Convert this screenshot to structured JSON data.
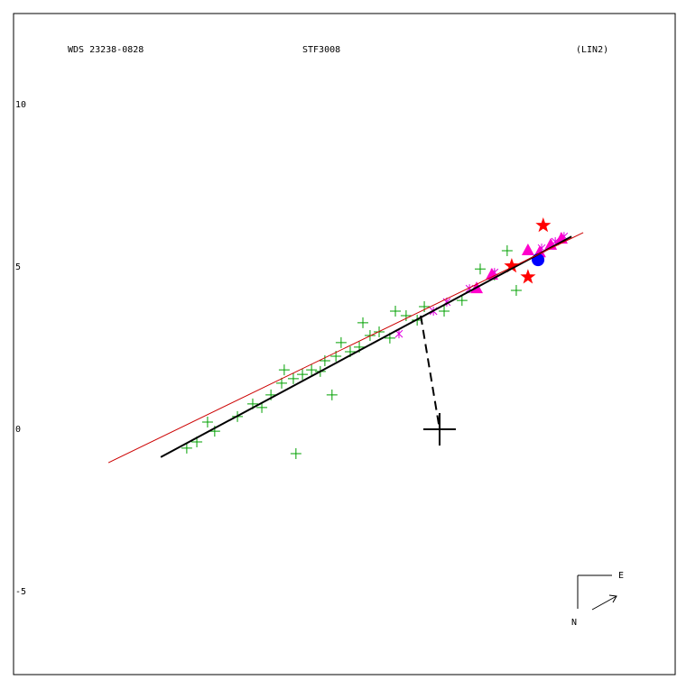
{
  "chart_data": {
    "type": "scatter",
    "header": [
      "WDS 23238-0828",
      "STF3008",
      "(LIN2)"
    ],
    "compass": [
      "E",
      "N"
    ],
    "xlim": [
      -13.11,
      7.25
    ],
    "ylim": [
      -7.56,
      12.81
    ],
    "yticks": [
      10,
      5,
      0,
      -5
    ],
    "series": [
      {
        "marker": "plus",
        "color": "#00a000",
        "x": [
          -7.78,
          -7.47,
          -7.14,
          -6.92,
          -6.22,
          -5.75,
          -5.47,
          -5.19,
          -4.86,
          -4.78,
          -4.5,
          -4.22,
          -3.94,
          -3.67,
          -3.53,
          -3.31,
          -3.19,
          -3.03,
          -2.75,
          -2.47,
          -2.36,
          -2.14,
          -1.86,
          -1.53,
          -1.36,
          -1.03,
          -0.69,
          -0.47,
          0.14,
          0.69,
          1.25,
          1.69,
          2.08,
          2.36,
          -4.42
        ],
        "values": [
          -0.58,
          -0.39,
          0.22,
          -0.06,
          0.39,
          0.78,
          0.67,
          1.06,
          1.42,
          1.83,
          1.56,
          1.69,
          1.83,
          1.78,
          2.11,
          1.06,
          2.25,
          2.67,
          2.39,
          2.53,
          3.28,
          2.89,
          3.0,
          2.81,
          3.64,
          3.5,
          3.36,
          3.78,
          3.64,
          3.97,
          4.94,
          4.75,
          5.5,
          4.28,
          -0.75
        ]
      },
      {
        "marker": "cross",
        "color": "#e000e0",
        "x": [
          -0.19,
          0.22,
          0.92,
          1.69,
          -1.25,
          3.14,
          3.56,
          3.83
        ],
        "values": [
          3.64,
          3.92,
          4.33,
          4.83,
          2.94,
          5.58,
          5.78,
          5.94
        ]
      },
      {
        "marker": "triangle",
        "color": "#ff00cc",
        "x": [
          1.14,
          1.61,
          2.72,
          3.08,
          3.42,
          3.75
        ],
        "values": [
          4.33,
          4.75,
          5.5,
          5.44,
          5.67,
          5.86
        ]
      },
      {
        "marker": "star",
        "color": "#ff0000",
        "x": [
          3.19,
          2.72,
          2.22
        ],
        "values": [
          6.28,
          4.69,
          5.03
        ]
      },
      {
        "marker": "circle",
        "color": "#0000ff",
        "x": [
          3.03
        ],
        "values": [
          5.22
        ]
      },
      {
        "marker": "line",
        "color": "#000000",
        "width": 2,
        "x": [
          -8.58,
          4.06
        ],
        "values": [
          -0.86,
          5.94
        ]
      },
      {
        "marker": "line",
        "color": "#cc0000",
        "width": 1,
        "x": [
          -10.19,
          4.42
        ],
        "values": [
          -1.03,
          6.06
        ]
      },
      {
        "marker": "dashed",
        "color": "#000000",
        "width": 2,
        "x": [
          -0.58,
          0
        ],
        "values": [
          3.5,
          0
        ]
      },
      {
        "marker": "bigcross",
        "color": "#000000",
        "x": [
          0
        ],
        "values": [
          0
        ]
      }
    ]
  }
}
